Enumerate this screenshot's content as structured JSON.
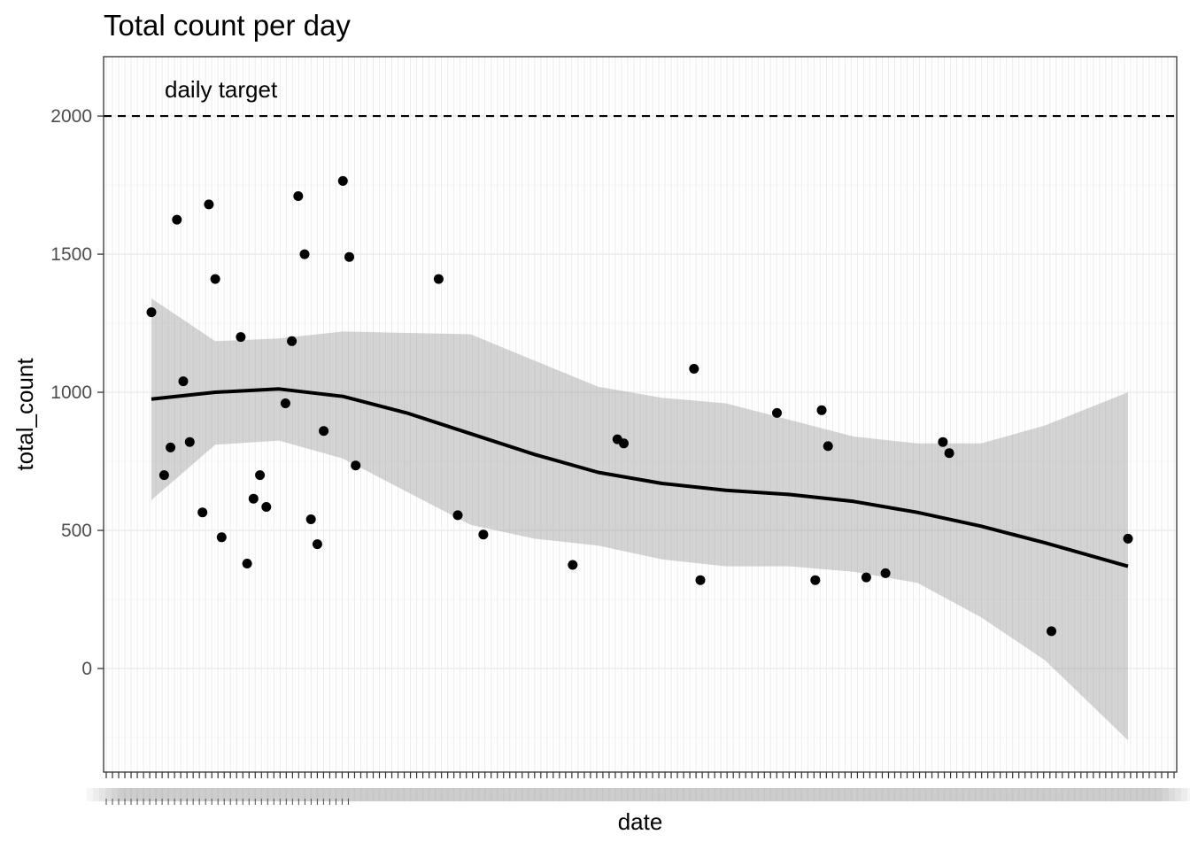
{
  "chart_data": {
    "type": "scatter",
    "title": "Total count per day",
    "xlabel": "date",
    "ylabel": "total_count",
    "ylim": [
      -375,
      2215
    ],
    "y_ticks": [
      0,
      500,
      1000,
      1500,
      2000
    ],
    "y_tick_labels": [
      "0",
      "500",
      "1000",
      "1500",
      "2000"
    ],
    "x_tick_labels_note": "dense overlapping date labels, unreadable",
    "reference_line": {
      "value": 2000,
      "style": "dashed",
      "label": "daily target"
    },
    "points": [
      {
        "x": 0,
        "y": 1290
      },
      {
        "x": 2,
        "y": 700
      },
      {
        "x": 3,
        "y": 800
      },
      {
        "x": 4,
        "y": 1625
      },
      {
        "x": 5,
        "y": 1040
      },
      {
        "x": 6,
        "y": 820
      },
      {
        "x": 8,
        "y": 565
      },
      {
        "x": 9,
        "y": 1680
      },
      {
        "x": 10,
        "y": 1410
      },
      {
        "x": 11,
        "y": 475
      },
      {
        "x": 14,
        "y": 1200
      },
      {
        "x": 15,
        "y": 380
      },
      {
        "x": 16,
        "y": 615
      },
      {
        "x": 17,
        "y": 700
      },
      {
        "x": 18,
        "y": 585
      },
      {
        "x": 21,
        "y": 960
      },
      {
        "x": 22,
        "y": 1185
      },
      {
        "x": 23,
        "y": 1710
      },
      {
        "x": 24,
        "y": 1500
      },
      {
        "x": 25,
        "y": 540
      },
      {
        "x": 26,
        "y": 450
      },
      {
        "x": 27,
        "y": 860
      },
      {
        "x": 30,
        "y": 1765
      },
      {
        "x": 31,
        "y": 1490
      },
      {
        "x": 32,
        "y": 735
      },
      {
        "x": 45,
        "y": 1410
      },
      {
        "x": 48,
        "y": 555
      },
      {
        "x": 52,
        "y": 485
      },
      {
        "x": 66,
        "y": 375
      },
      {
        "x": 73,
        "y": 830
      },
      {
        "x": 74,
        "y": 815
      },
      {
        "x": 85,
        "y": 1085
      },
      {
        "x": 86,
        "y": 320
      },
      {
        "x": 98,
        "y": 925
      },
      {
        "x": 104,
        "y": 320
      },
      {
        "x": 105,
        "y": 935
      },
      {
        "x": 106,
        "y": 805
      },
      {
        "x": 112,
        "y": 330
      },
      {
        "x": 115,
        "y": 345
      },
      {
        "x": 124,
        "y": 820
      },
      {
        "x": 125,
        "y": 780
      },
      {
        "x": 141,
        "y": 135
      },
      {
        "x": 153,
        "y": 470
      }
    ],
    "smooth": {
      "method": "loess",
      "x": [
        0,
        10,
        20,
        30,
        40,
        50,
        60,
        70,
        80,
        90,
        100,
        110,
        120,
        130,
        140,
        153
      ],
      "fit": [
        975,
        1000,
        1012,
        985,
        925,
        850,
        775,
        710,
        670,
        645,
        630,
        605,
        565,
        515,
        455,
        370
      ],
      "upper": [
        1340,
        1185,
        1195,
        1220,
        1215,
        1210,
        1115,
        1020,
        980,
        960,
        900,
        840,
        815,
        815,
        880,
        1000
      ],
      "lower": [
        610,
        810,
        825,
        760,
        640,
        520,
        470,
        445,
        395,
        370,
        370,
        350,
        310,
        185,
        30,
        -260
      ]
    }
  }
}
